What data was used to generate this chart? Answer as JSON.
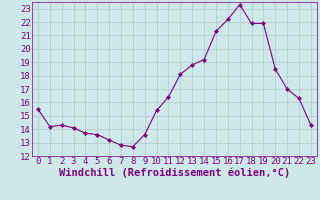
{
  "x": [
    0,
    1,
    2,
    3,
    4,
    5,
    6,
    7,
    8,
    9,
    10,
    11,
    12,
    13,
    14,
    15,
    16,
    17,
    18,
    19,
    20,
    21,
    22,
    23
  ],
  "y": [
    15.5,
    14.2,
    14.3,
    14.1,
    13.7,
    13.6,
    13.2,
    12.8,
    12.7,
    13.6,
    15.4,
    16.4,
    18.1,
    18.8,
    19.2,
    21.3,
    22.2,
    23.3,
    21.9,
    21.9,
    18.5,
    17.0,
    16.3,
    14.3
  ],
  "line_color": "#800080",
  "marker": "D",
  "marker_size": 2,
  "bg_color": "#cce8e8",
  "grid_color": "#b0c8c8",
  "xlabel": "Windchill (Refroidissement éolien,°C)",
  "xlim": [
    -0.5,
    23.5
  ],
  "ylim": [
    12,
    23.5
  ],
  "yticks": [
    12,
    13,
    14,
    15,
    16,
    17,
    18,
    19,
    20,
    21,
    22,
    23
  ],
  "xticks": [
    0,
    1,
    2,
    3,
    4,
    5,
    6,
    7,
    8,
    9,
    10,
    11,
    12,
    13,
    14,
    15,
    16,
    17,
    18,
    19,
    20,
    21,
    22,
    23
  ],
  "tick_color": "#800080",
  "label_color": "#800080",
  "font_size": 6.5,
  "xlabel_font_size": 7.5,
  "lw": 0.8
}
